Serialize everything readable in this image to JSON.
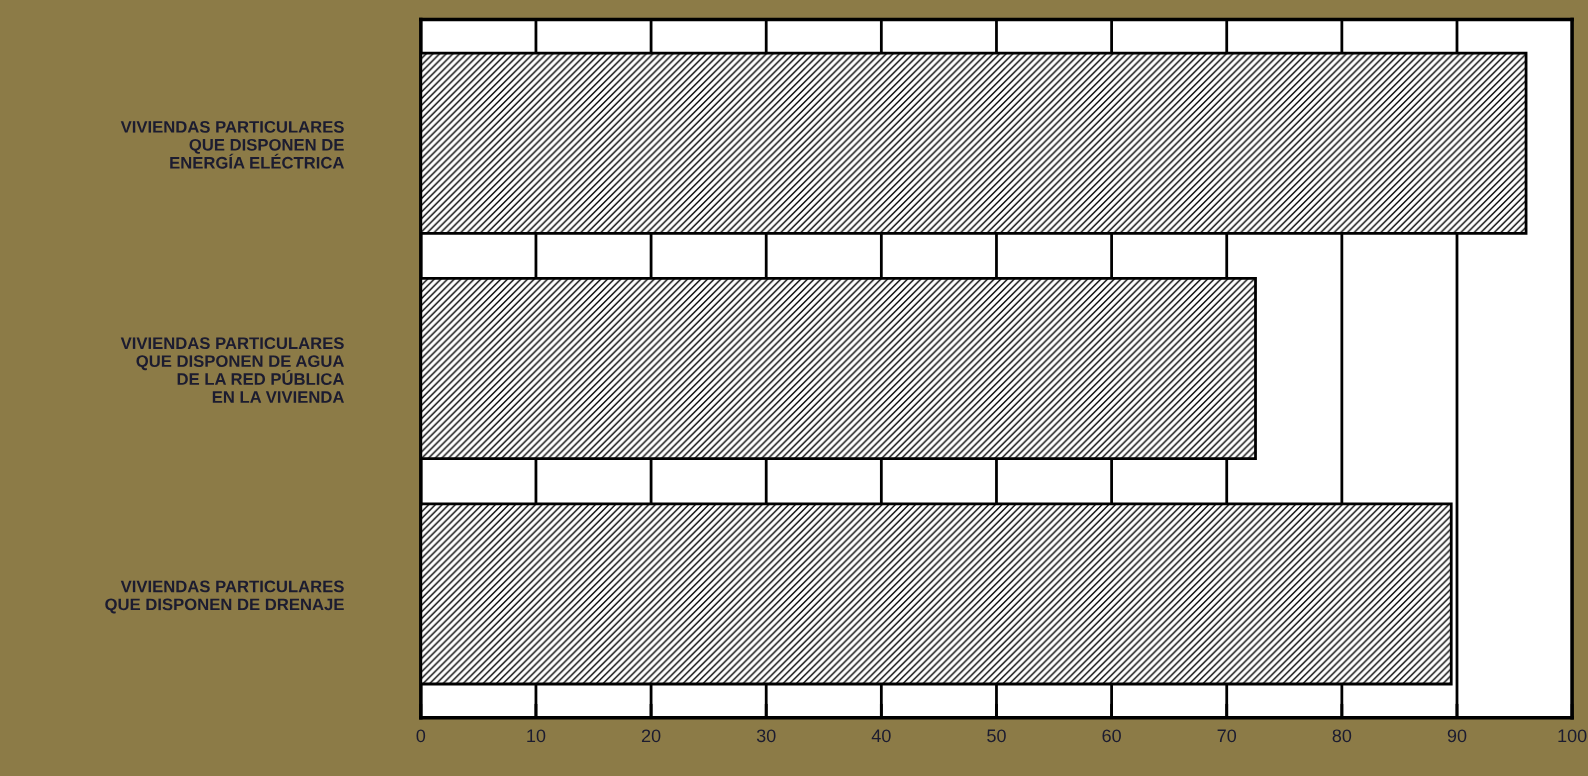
{
  "chart_data": {
    "type": "bar",
    "orientation": "horizontal",
    "categories": [
      "VIVIENDAS PARTICULARES\nQUE DISPONEN DE\nENERGÍA ELÉCTRICA",
      "VIVIENDAS PARTICULARES\nQUE DISPONEN DE AGUA\nDE LA RED PÚBLICA\nEN LA VIVIENDA",
      "VIVIENDAS PARTICULARES\nQUE DISPONEN DE DRENAJE"
    ],
    "values": [
      96,
      72.5,
      89.5
    ],
    "color": "#000000",
    "xlim": [
      0,
      100
    ],
    "xticks": [
      0,
      10,
      20,
      30,
      40,
      50,
      60,
      70,
      80,
      90,
      100
    ],
    "grid": "x"
  }
}
